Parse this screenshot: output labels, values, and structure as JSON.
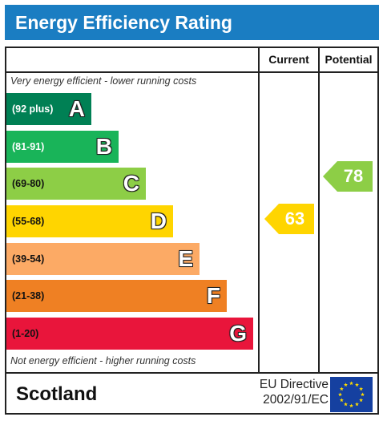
{
  "title": "Energy Efficiency Rating",
  "columns": {
    "current": "Current",
    "potential": "Potential"
  },
  "notes": {
    "top": "Very energy efficient - lower running costs",
    "bottom": "Not energy efficient - higher running costs"
  },
  "bands": [
    {
      "range": "(92 plus)",
      "letter": "A",
      "color": "#008054",
      "text_color": "#ffffff"
    },
    {
      "range": "(81-91)",
      "letter": "B",
      "color": "#19b459",
      "text_color": "#ffffff"
    },
    {
      "range": "(69-80)",
      "letter": "C",
      "color": "#8dce46",
      "text_color": "#111111"
    },
    {
      "range": "(55-68)",
      "letter": "D",
      "color": "#ffd500",
      "text_color": "#111111"
    },
    {
      "range": "(39-54)",
      "letter": "E",
      "color": "#fcaa65",
      "text_color": "#111111"
    },
    {
      "range": "(21-38)",
      "letter": "F",
      "color": "#ef8023",
      "text_color": "#111111"
    },
    {
      "range": "(1-20)",
      "letter": "G",
      "color": "#e9153b",
      "text_color": "#111111"
    }
  ],
  "current": {
    "value": "63",
    "band": "D",
    "color": "#ffd500"
  },
  "potential": {
    "value": "78",
    "band": "C",
    "color": "#8dce46"
  },
  "footer": {
    "country": "Scotland",
    "directive_line1": "EU Directive",
    "directive_line2": "2002/91/EC",
    "flag_color": "#1540a0",
    "star_color": "#ffdd00"
  }
}
